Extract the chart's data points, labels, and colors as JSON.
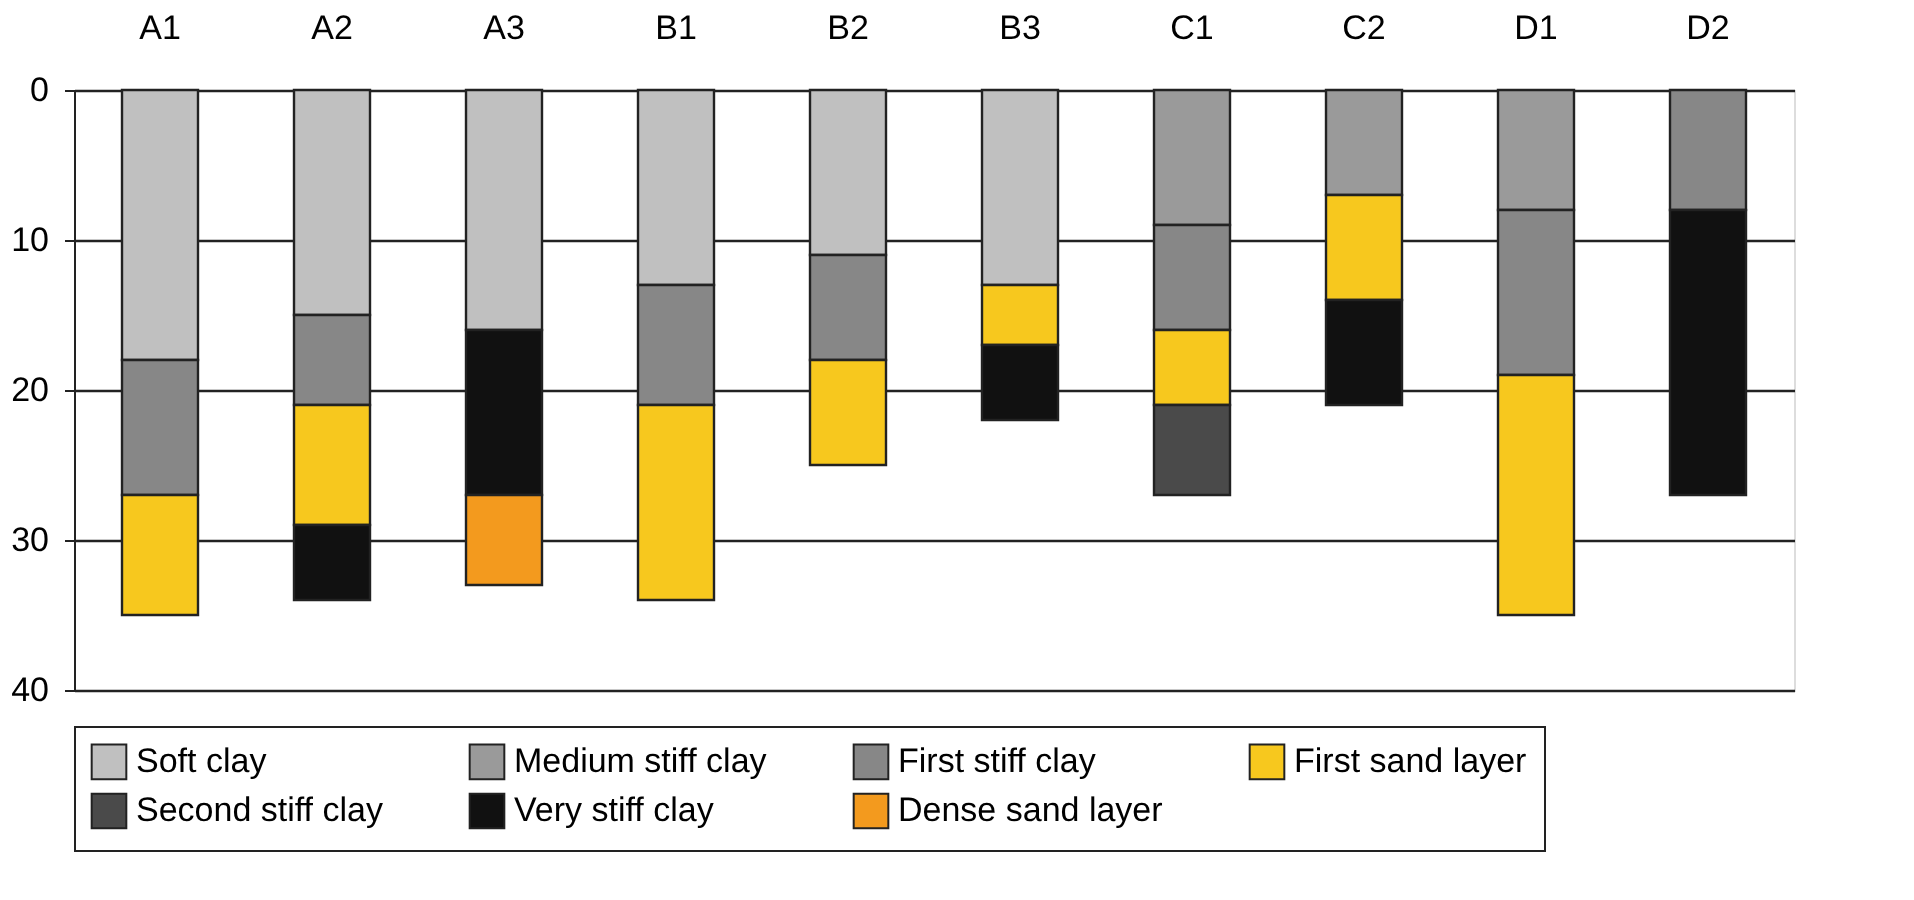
{
  "chart_data": {
    "type": "bar",
    "stacked": true,
    "categories": [
      "A1",
      "A2",
      "A3",
      "B1",
      "B2",
      "B3",
      "C1",
      "C2",
      "D1",
      "D2"
    ],
    "series": [
      {
        "name": "Soft clay",
        "color": "#c0c0c0",
        "values": [
          18,
          15,
          16,
          13,
          11,
          13,
          null,
          null,
          null,
          null
        ]
      },
      {
        "name": "Medium stiff clay",
        "color": "#9a9a9a",
        "values": [
          null,
          null,
          null,
          null,
          null,
          null,
          9,
          7,
          8,
          null
        ]
      },
      {
        "name": "First stiff clay",
        "color": "#878787",
        "values": [
          9,
          6,
          null,
          8,
          7,
          null,
          7,
          null,
          11,
          8
        ]
      },
      {
        "name": "First sand layer",
        "color": "#f7c81e",
        "values": [
          8,
          8,
          null,
          13,
          7,
          4,
          5,
          7,
          16,
          null
        ]
      },
      {
        "name": "Second stiff clay",
        "color": "#4a4a4a",
        "values": [
          null,
          null,
          null,
          null,
          null,
          null,
          6,
          null,
          null,
          null
        ]
      },
      {
        "name": "Very stiff clay",
        "color": "#111111",
        "values": [
          null,
          5,
          11,
          null,
          null,
          5,
          null,
          7,
          null,
          19
        ]
      },
      {
        "name": "Dense sand layer",
        "color": "#f39a1e",
        "values": [
          null,
          null,
          6,
          null,
          null,
          null,
          null,
          null,
          null,
          null
        ]
      }
    ],
    "ylim": [
      40,
      0
    ],
    "yticks": [
      0,
      10,
      20,
      30,
      40
    ],
    "grid": "y",
    "legend": "bottom"
  }
}
